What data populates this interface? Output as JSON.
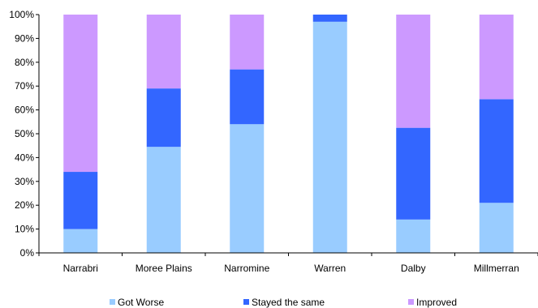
{
  "chart_data": {
    "type": "bar",
    "stacked": true,
    "categories": [
      "Narrabri",
      "Moree Plains",
      "Narromine",
      "Warren",
      "Dalby",
      "Millmerran"
    ],
    "series": [
      {
        "name": "Got Worse",
        "color": "#99ccff",
        "values": [
          10,
          44.5,
          54,
          97,
          14,
          21
        ]
      },
      {
        "name": "Stayed the same",
        "color": "#3366ff",
        "values": [
          24,
          24.5,
          23,
          3,
          38.5,
          43.5
        ]
      },
      {
        "name": "Improved",
        "color": "#cc99ff",
        "values": [
          66,
          31,
          23,
          0,
          47.5,
          35.5
        ]
      }
    ],
    "ylim": [
      0,
      100
    ],
    "yticks": [
      "0%",
      "10%",
      "20%",
      "30%",
      "40%",
      "50%",
      "60%",
      "70%",
      "80%",
      "90%",
      "100%"
    ],
    "grid": false,
    "legend_position": "bottom"
  }
}
